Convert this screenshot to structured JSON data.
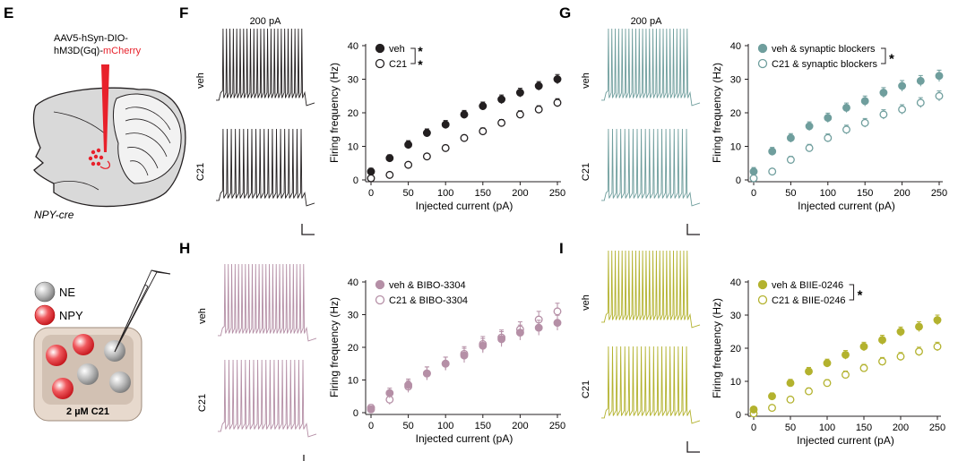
{
  "panel_letters": {
    "E": "E",
    "F": "F",
    "G": "G",
    "H": "H",
    "I": "I"
  },
  "schematic_e": {
    "virus_line1": "AAV5-hSyn-DIO-",
    "virus_line2a": "hM3D(Gq)-",
    "virus_line2b": "mCherry",
    "mouse_line": "NPY-cre",
    "legend_ne": "NE",
    "legend_npy": "NPY",
    "dish_label": "2 µM C21"
  },
  "colors": {
    "black": "#231f20",
    "teal": "#6f9e9d",
    "mauve": "#b58fa6",
    "olive": "#b3b22e",
    "red": "#e8212b",
    "brain_gray": "#d9d9d9",
    "dish": "#e7d9cd",
    "dish_inner": "#d2c1b3"
  },
  "trace_labels": {
    "current": "200 pA",
    "veh": "veh",
    "c21": "C21"
  },
  "chart_data": [
    {
      "panel": "F",
      "type": "scatter",
      "color": "#231f20",
      "xlabel": "Injected current (pA)",
      "ylabel": "Firing frequency (Hz)",
      "xlim": [
        0,
        250
      ],
      "ylim": [
        0,
        40
      ],
      "xticks": [
        0,
        50,
        100,
        150,
        200,
        250
      ],
      "yticks": [
        0,
        10,
        20,
        30,
        40
      ],
      "x": [
        0,
        25,
        50,
        75,
        100,
        125,
        150,
        175,
        200,
        225,
        250
      ],
      "series": [
        {
          "name": "veh",
          "fill": "filled",
          "values": [
            2.5,
            6.5,
            10.5,
            14,
            16.5,
            19.5,
            22,
            24,
            26,
            28,
            30
          ],
          "err": [
            1,
            1,
            1.2,
            1.2,
            1.2,
            1.2,
            1.2,
            1.3,
            1.3,
            1.3,
            1.4
          ]
        },
        {
          "name": "C21",
          "fill": "open",
          "values": [
            0.5,
            1.5,
            4.5,
            7,
            9.5,
            12.5,
            14.5,
            17,
            19.5,
            21,
            23
          ],
          "err": [
            0.5,
            0.6,
            0.8,
            0.8,
            0.9,
            0.9,
            1,
            1,
            1.1,
            1.1,
            1.2
          ]
        }
      ],
      "significance": "**"
    },
    {
      "panel": "G",
      "type": "scatter",
      "color": "#6f9e9d",
      "xlabel": "Injected current (pA)",
      "ylabel": "Firing frequency (Hz)",
      "xlim": [
        0,
        250
      ],
      "ylim": [
        0,
        40
      ],
      "xticks": [
        0,
        50,
        100,
        150,
        200,
        250
      ],
      "yticks": [
        0,
        10,
        20,
        30,
        40
      ],
      "x": [
        0,
        25,
        50,
        75,
        100,
        125,
        150,
        175,
        200,
        225,
        250
      ],
      "series": [
        {
          "name": "veh & synaptic blockers",
          "fill": "filled",
          "values": [
            2.5,
            8.5,
            12.5,
            16,
            18.5,
            21.5,
            23.5,
            26,
            28,
            29.5,
            31
          ],
          "err": [
            1.2,
            1.2,
            1.3,
            1.3,
            1.4,
            1.4,
            1.5,
            1.5,
            1.6,
            1.6,
            1.7
          ]
        },
        {
          "name": "C21 & synaptic blockers",
          "fill": "open",
          "values": [
            0.5,
            2.5,
            6,
            9.5,
            12.5,
            15,
            17,
            19.5,
            21,
            23,
            25
          ],
          "err": [
            0.6,
            0.8,
            1,
            1.1,
            1.2,
            1.3,
            1.3,
            1.4,
            1.4,
            1.5,
            1.5
          ]
        }
      ],
      "significance": "*"
    },
    {
      "panel": "H",
      "type": "scatter",
      "color": "#b58fa6",
      "xlabel": "Injected current (pA)",
      "ylabel": "Firing frequency (Hz)",
      "xlim": [
        0,
        250
      ],
      "ylim": [
        0,
        40
      ],
      "xticks": [
        0,
        50,
        100,
        150,
        200,
        250
      ],
      "yticks": [
        0,
        10,
        20,
        30,
        40
      ],
      "x": [
        0,
        25,
        50,
        75,
        100,
        125,
        150,
        175,
        200,
        225,
        250
      ],
      "series": [
        {
          "name": "veh & BIBO-3304",
          "fill": "filled",
          "values": [
            1,
            6,
            8.5,
            12,
            15,
            17.5,
            20.5,
            22.5,
            24.5,
            26,
            27.5
          ],
          "err": [
            1,
            1.5,
            1.8,
            2,
            2,
            2.2,
            2.2,
            2.3,
            2.3,
            2.3,
            2.3
          ]
        },
        {
          "name": "C21 & BIBO-3304",
          "fill": "open",
          "values": [
            1.5,
            4,
            8,
            12,
            15,
            18,
            21,
            23,
            25.5,
            28.5,
            31
          ],
          "err": [
            1,
            1.5,
            1.8,
            2,
            2,
            2.2,
            2.3,
            2.3,
            2.3,
            2.5,
            2.5
          ]
        }
      ],
      "significance": ""
    },
    {
      "panel": "I",
      "type": "scatter",
      "color": "#b3b22e",
      "xlabel": "Injected current (pA)",
      "ylabel": "Firing frequency (Hz)",
      "xlim": [
        0,
        250
      ],
      "ylim": [
        0,
        40
      ],
      "xticks": [
        0,
        50,
        100,
        150,
        200,
        250
      ],
      "yticks": [
        0,
        10,
        20,
        30,
        40
      ],
      "x": [
        0,
        25,
        50,
        75,
        100,
        125,
        150,
        175,
        200,
        225,
        250
      ],
      "series": [
        {
          "name": "veh & BIIE-0246",
          "fill": "filled",
          "values": [
            1.5,
            5.5,
            9.5,
            13,
            15.5,
            18,
            20.5,
            22.5,
            25,
            26.5,
            28.5
          ],
          "err": [
            0.8,
            1,
            1.1,
            1.2,
            1.2,
            1.3,
            1.3,
            1.4,
            1.4,
            1.5,
            1.5
          ]
        },
        {
          "name": "C21 & BIIE-0246",
          "fill": "open",
          "values": [
            0.3,
            2,
            4.5,
            7,
            9.5,
            12,
            14,
            16,
            17.5,
            19,
            20.5
          ],
          "err": [
            0.5,
            0.6,
            0.8,
            1,
            1,
            1.1,
            1.1,
            1.2,
            1.2,
            1.3,
            1.3
          ]
        }
      ],
      "significance": "*"
    }
  ]
}
